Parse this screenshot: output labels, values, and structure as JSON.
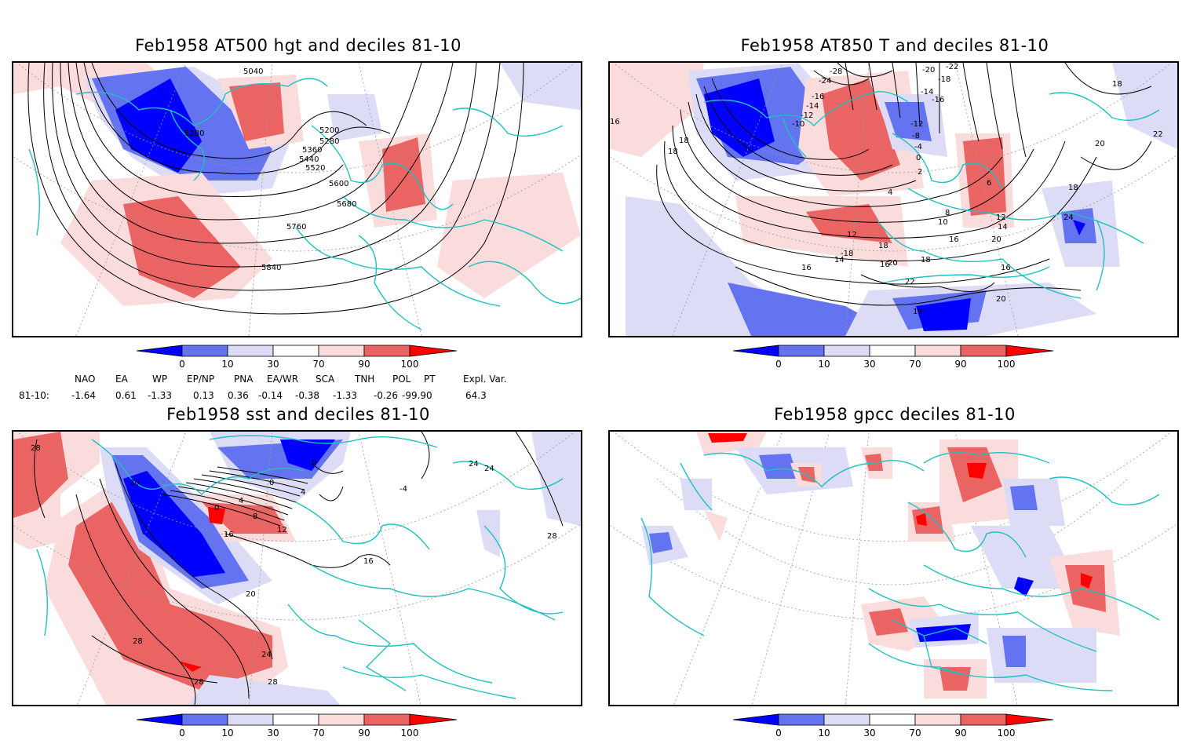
{
  "panels": [
    {
      "title": "Feb1958 AT500 hgt and deciles 81-10",
      "contour_labels": [
        "5040",
        "5280",
        "5200",
        "5280",
        "5360",
        "5440",
        "5520",
        "5600",
        "5680",
        "5760",
        "5840"
      ]
    },
    {
      "title": "Feb1958 AT850 T and deciles 81-10",
      "contour_labels": [
        "-28",
        "-24",
        "-20",
        "-22",
        "-18",
        "-16",
        "-14",
        "-12",
        "-10",
        "-14",
        "-16",
        "-12",
        "-8",
        "-4",
        "0",
        "2",
        "4",
        "6",
        "8",
        "10",
        "12",
        "14",
        "16",
        "18",
        "20",
        "22",
        "24",
        "18",
        "16",
        "18",
        "20",
        "18",
        "18",
        "16",
        "-18",
        "16",
        "14",
        "12",
        "16",
        "18",
        "20",
        "22",
        "20",
        "18"
      ]
    },
    {
      "title": "Feb1958 sst and deciles 81-10",
      "contour_labels": [
        "28",
        "20",
        "0",
        "4",
        "8",
        "12",
        "16",
        "16",
        "20",
        "24",
        "28",
        "28",
        "28",
        "24",
        "0",
        "4",
        "0",
        "-4",
        "24",
        "28"
      ]
    },
    {
      "title": "Feb1958 gpcc deciles 81-10",
      "contour_labels": []
    }
  ],
  "colorbar": {
    "ticks": [
      "0",
      "10",
      "30",
      "70",
      "90",
      "100"
    ],
    "colors": [
      "#0000ff",
      "#6473ef",
      "#dcdcf7",
      "#ffffff",
      "#fadcdc",
      "#eb6464",
      "#ff0000"
    ]
  },
  "indices": {
    "headers": [
      "NAO",
      "EA",
      "WP",
      "EP/NP",
      "PNA",
      "EA/WR",
      "SCA",
      "TNH",
      "POL",
      "PT",
      "Expl. Var."
    ],
    "row_label": "81-10:",
    "values": [
      "-1.64",
      "0.61",
      "-1.33",
      "0.13",
      "0.36",
      "-0.14",
      "-0.38",
      "-1.33",
      "-0.26",
      "-99.90",
      "64.3"
    ]
  }
}
